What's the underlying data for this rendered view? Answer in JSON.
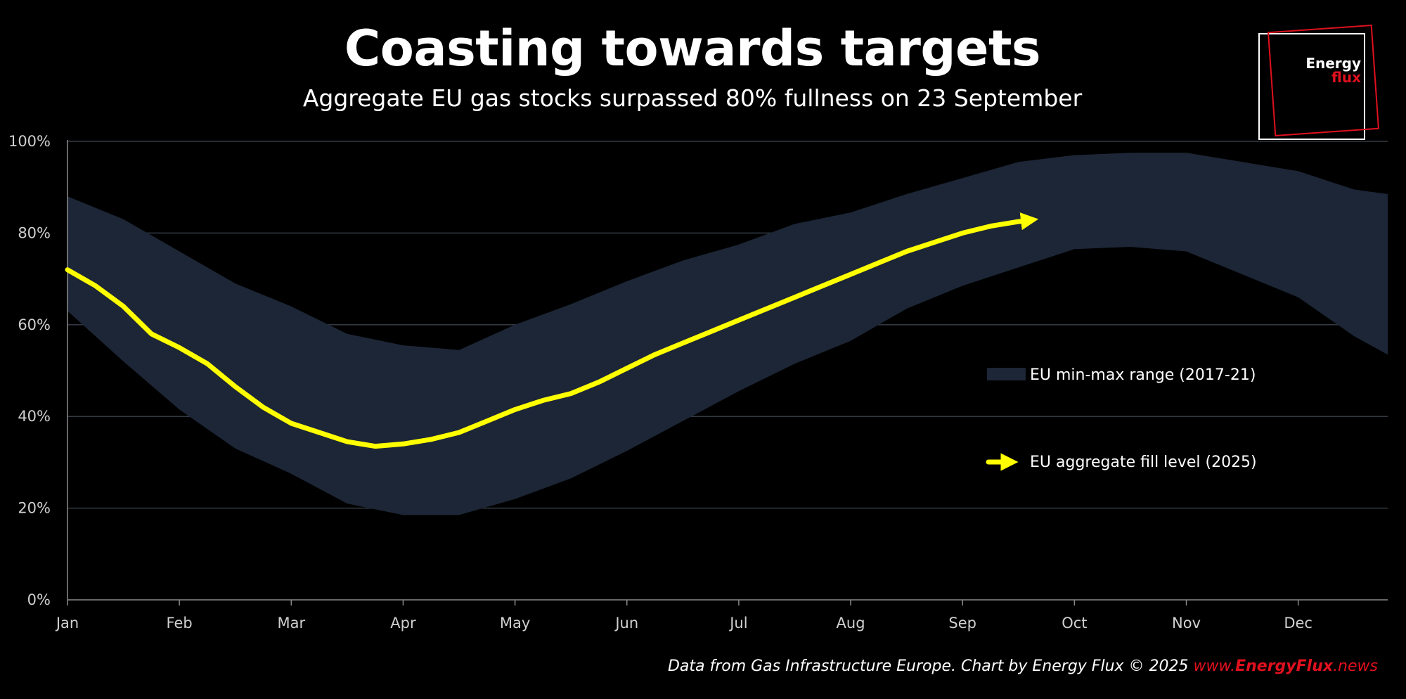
{
  "header": {
    "title": "Coasting towards targets",
    "subtitle": "Aggregate EU gas stocks surpassed 80% fullness on 23 September"
  },
  "logo": {
    "word1": "Energy",
    "word2": "flux"
  },
  "credit": {
    "text": "Data from Gas Infrastructure Europe. Chart by Energy Flux © 2025 ",
    "link_a": "www.",
    "link_b": "EnergyFlux",
    "link_c": ".news"
  },
  "colors": {
    "background": "#000000",
    "band": "#1c2636",
    "line": "#ffff00",
    "gridline": "#333a44",
    "accent": "#e0101e"
  },
  "chart_data": {
    "type": "area",
    "title": "Coasting towards targets",
    "subtitle": "Aggregate EU gas stocks surpassed 80% fullness on 23 September",
    "xlabel": "",
    "ylabel": "",
    "x_unit": "month index (0 = 1 Jan, 12 = end of Dec)",
    "xlim": [
      0,
      11.8
    ],
    "ylim": [
      0,
      100
    ],
    "yticks": [
      0,
      20,
      40,
      60,
      80,
      100
    ],
    "ytick_labels": [
      "0%",
      "20%",
      "40%",
      "60%",
      "80%",
      "100%"
    ],
    "xtick_labels": [
      "Jan",
      "Feb",
      "Mar",
      "Apr",
      "May",
      "Jun",
      "Jul",
      "Aug",
      "Sep",
      "Oct",
      "Nov",
      "Dec"
    ],
    "grid": true,
    "series": [
      {
        "name": "EU min-max range (2017-21)",
        "kind": "band",
        "x": [
          0,
          0.5,
          1,
          1.5,
          2,
          2.5,
          3,
          3.5,
          4,
          4.5,
          5,
          5.5,
          6,
          6.5,
          7,
          7.5,
          8,
          8.5,
          9,
          9.5,
          10,
          10.5,
          11,
          11.5,
          11.8
        ],
        "upper": [
          88,
          83,
          76,
          69,
          64,
          58,
          55.5,
          54.5,
          60,
          64.5,
          69.5,
          74,
          77.5,
          82,
          84.5,
          88.5,
          92,
          95.5,
          97,
          97.5,
          97.5,
          95.5,
          93.5,
          89.5,
          88.5
        ],
        "lower": [
          63,
          52,
          41.5,
          33,
          27.5,
          21,
          18.5,
          18.5,
          22,
          26.5,
          32.5,
          39,
          45.5,
          51.5,
          56.5,
          63.5,
          68.5,
          72.5,
          76.5,
          77,
          76,
          71,
          66,
          57.5,
          53.5
        ]
      },
      {
        "name": "EU aggregate fill level (2025)",
        "kind": "line",
        "x": [
          0,
          0.25,
          0.5,
          0.75,
          1,
          1.25,
          1.5,
          1.75,
          2,
          2.25,
          2.5,
          2.75,
          3,
          3.25,
          3.5,
          3.75,
          4,
          4.25,
          4.5,
          4.75,
          5,
          5.25,
          5.5,
          5.75,
          6,
          6.25,
          6.5,
          6.75,
          7,
          7.25,
          7.5,
          7.75,
          8,
          8.25,
          8.5,
          8.6
        ],
        "values": [
          72,
          68.5,
          64,
          58,
          55,
          51.5,
          46.5,
          42,
          38.5,
          36.5,
          34.5,
          33.5,
          34,
          35,
          36.5,
          39,
          41.5,
          43.5,
          45,
          47.5,
          50.5,
          53.5,
          56,
          58.5,
          61,
          63.5,
          66,
          68.5,
          71,
          73.5,
          76,
          78,
          80,
          81.5,
          82.5,
          82.8
        ]
      }
    ],
    "legend": [
      {
        "label": "EU min-max range (2017-21)",
        "kind": "band"
      },
      {
        "label": "EU aggregate fill level (2025)",
        "kind": "line"
      }
    ],
    "legend_position": "center-right"
  }
}
